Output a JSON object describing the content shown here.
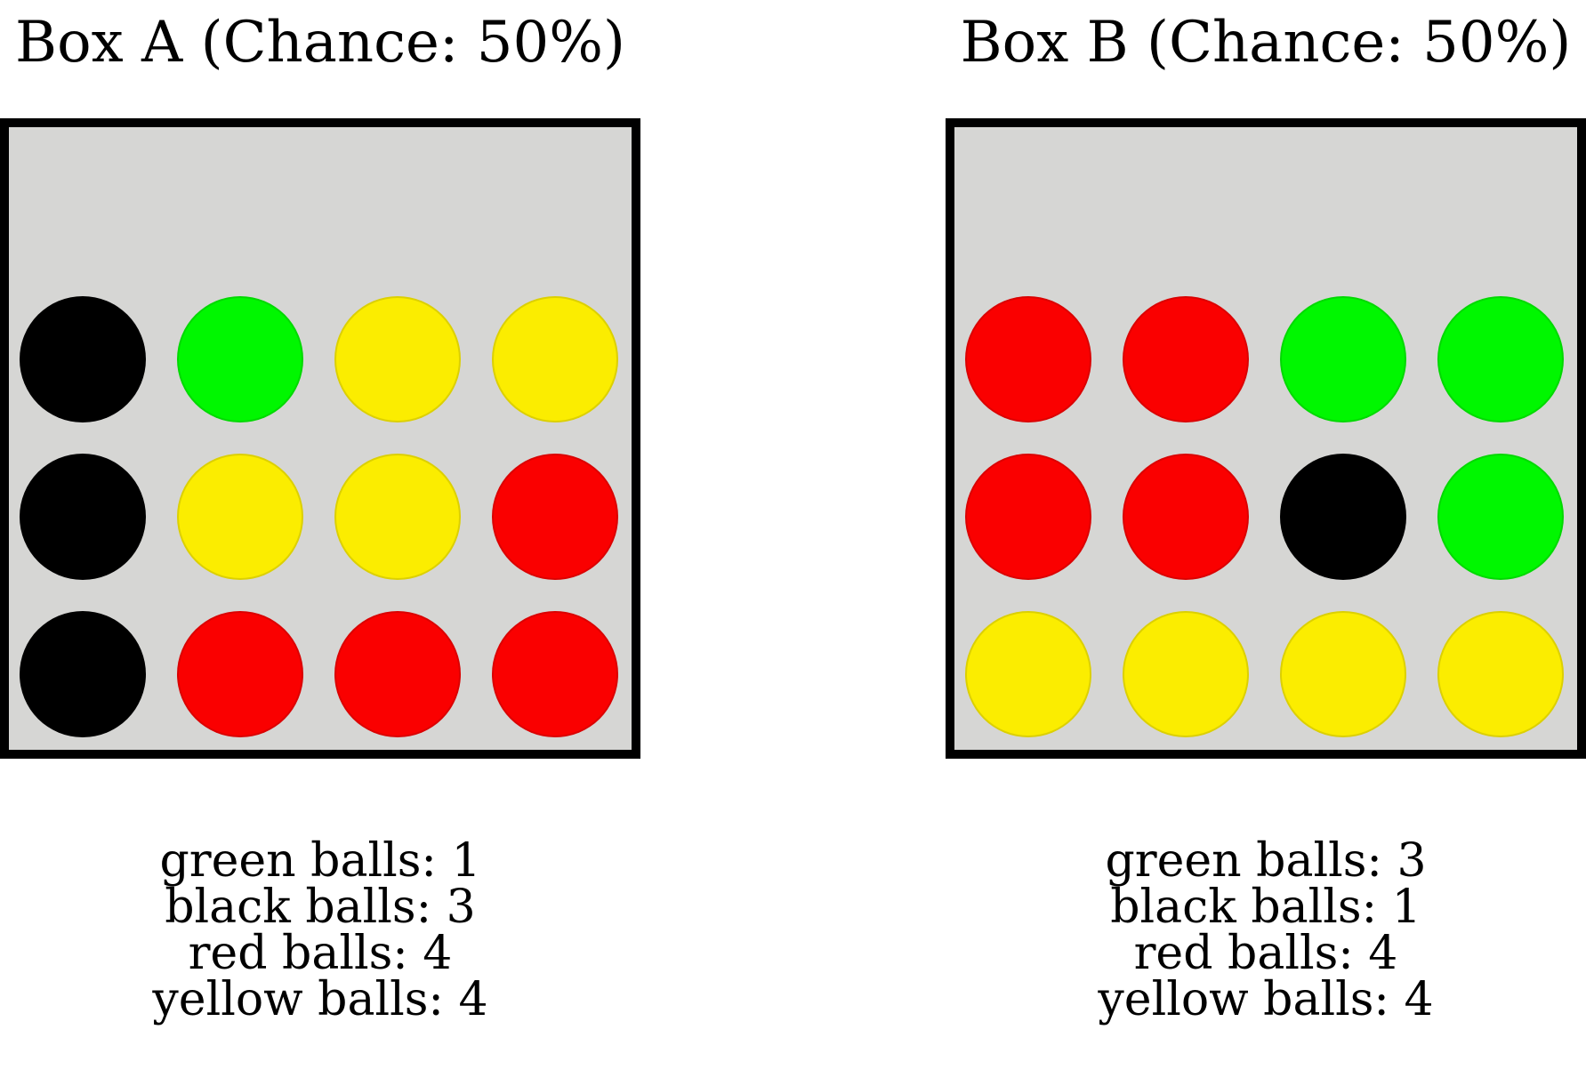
{
  "colors": {
    "green": "#00f700",
    "black": "#000000",
    "red": "#fa0000",
    "yellow": "#fbed00",
    "box_fill": "#d6d6d4",
    "box_border": "#000000"
  },
  "boxes": [
    {
      "title": "Box A (Chance: 50%)",
      "grid": [
        [
          "black",
          "green",
          "yellow",
          "yellow"
        ],
        [
          "black",
          "yellow",
          "yellow",
          "red"
        ],
        [
          "black",
          "red",
          "red",
          "red"
        ]
      ],
      "counts": [
        "green balls: 1",
        "black balls: 3",
        "red balls: 4",
        "yellow balls: 4"
      ]
    },
    {
      "title": "Box B (Chance: 50%)",
      "grid": [
        [
          "red",
          "red",
          "green",
          "green"
        ],
        [
          "red",
          "red",
          "black",
          "green"
        ],
        [
          "yellow",
          "yellow",
          "yellow",
          "yellow"
        ]
      ],
      "counts": [
        "green balls: 3",
        "black balls: 1",
        "red balls: 4",
        "yellow balls: 4"
      ]
    }
  ]
}
